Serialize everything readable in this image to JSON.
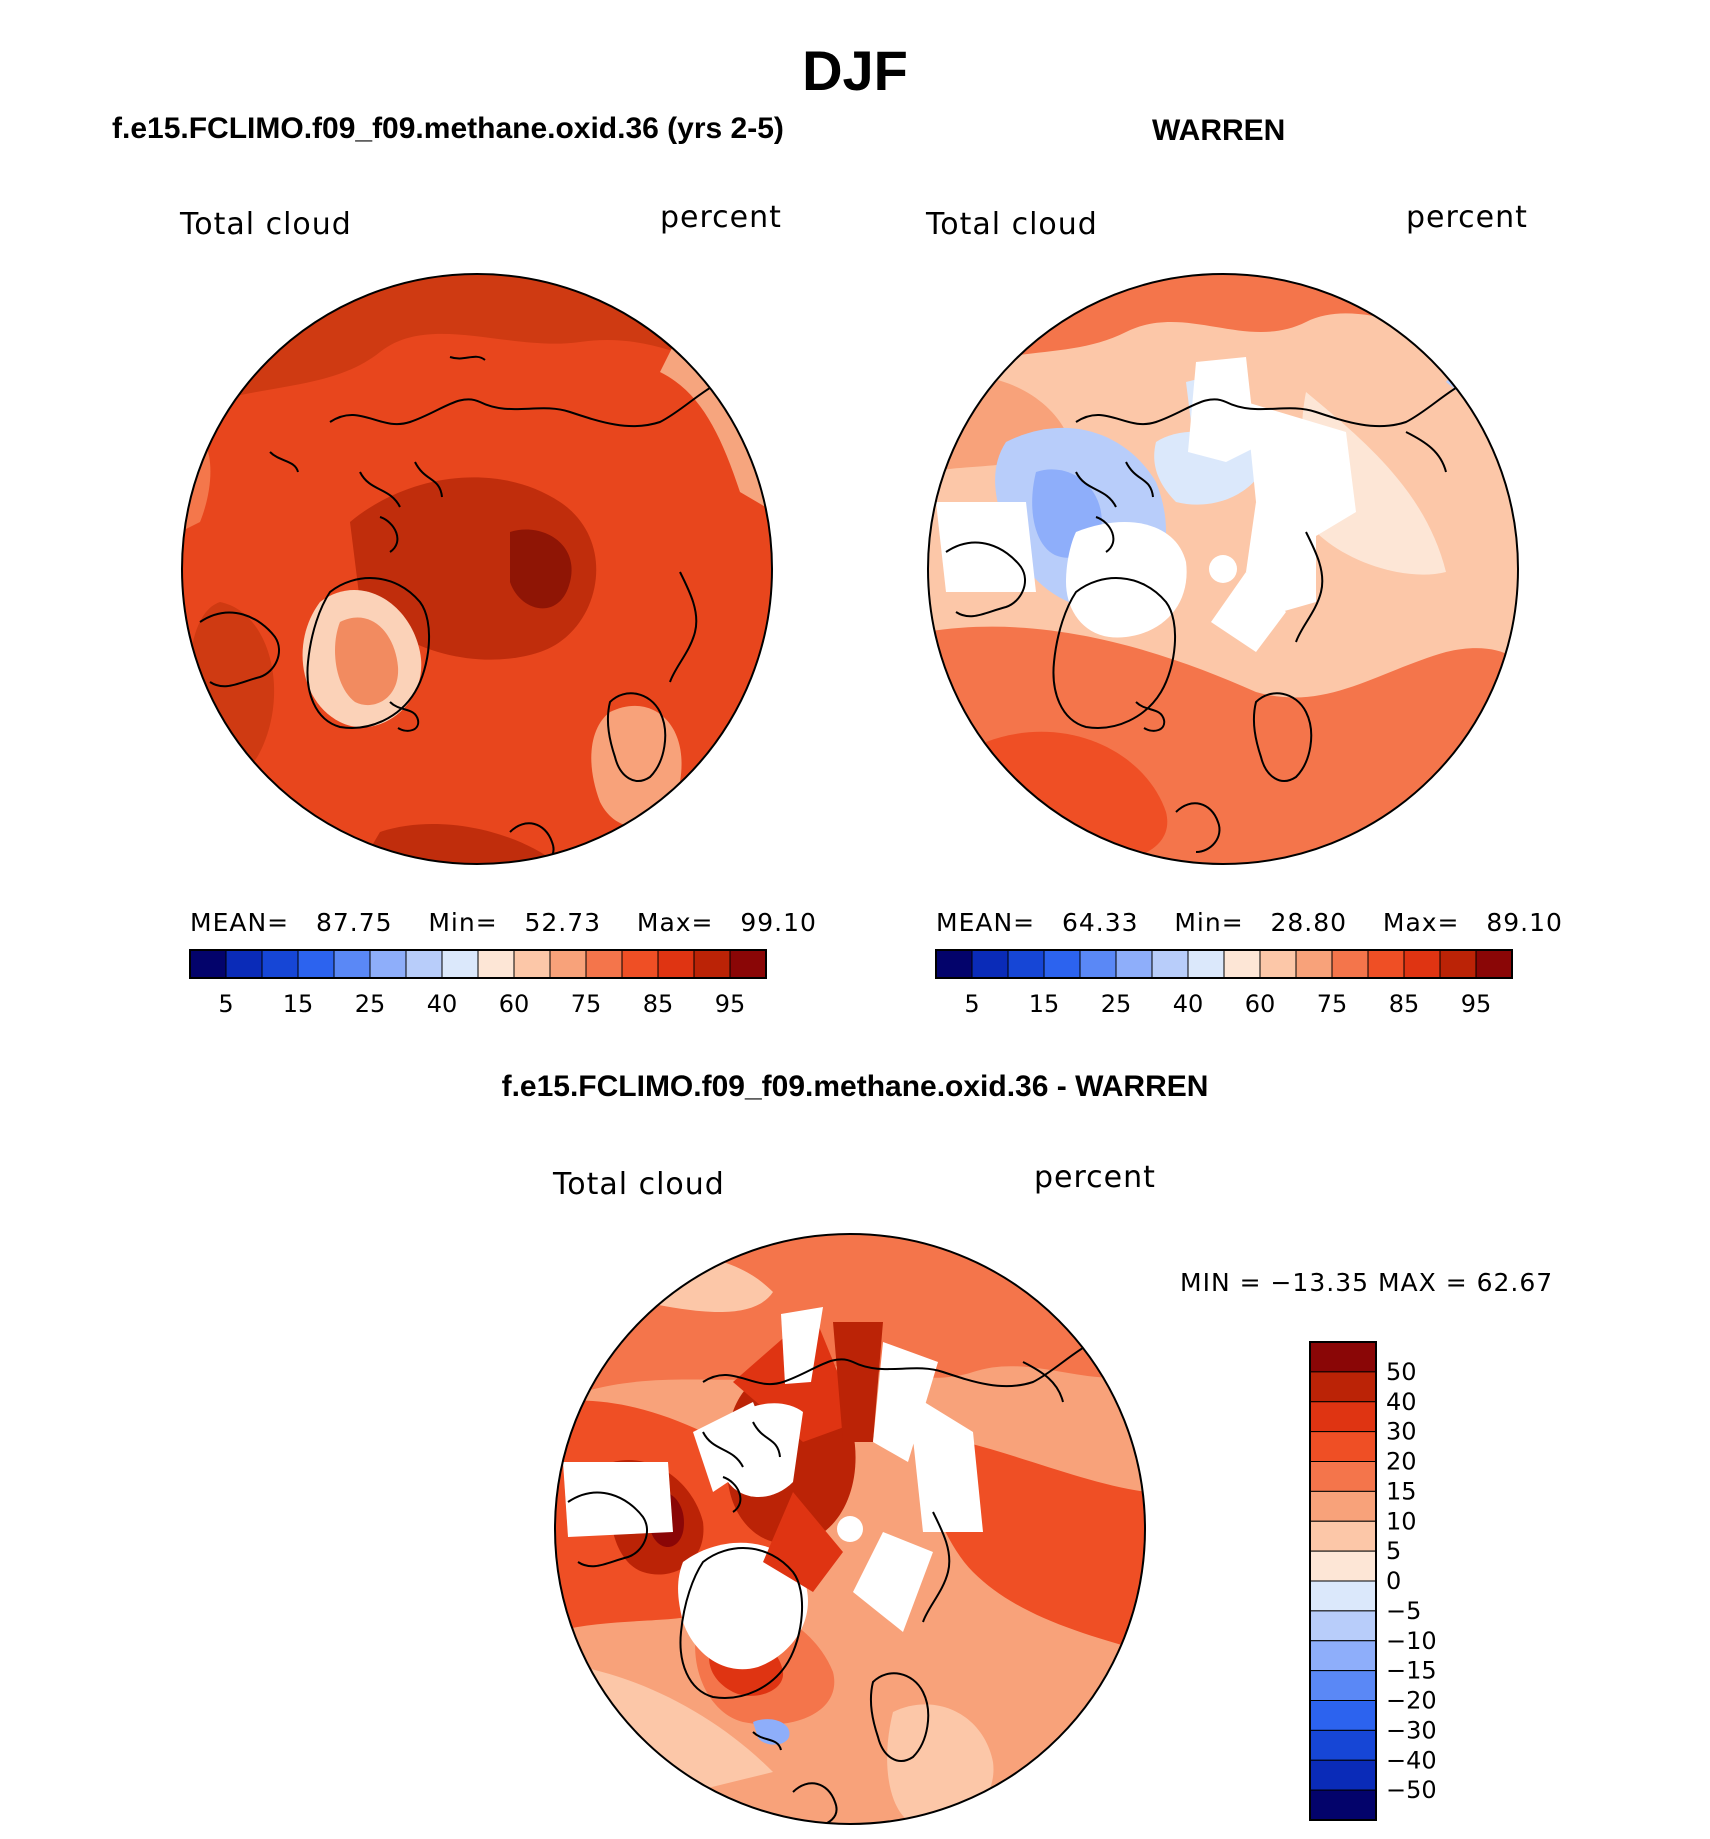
{
  "title": "DJF",
  "panels": {
    "model": {
      "case": "f.e15.FCLIMO.f09_f09.methane.oxid.36 (yrs 2-5)",
      "variable": "Total cloud",
      "units": "percent",
      "stats": {
        "mean_label": "MEAN=",
        "mean": "87.75",
        "min_label": "Min=",
        "min": "52.73",
        "max_label": "Max=",
        "max": "99.10"
      }
    },
    "obs": {
      "case": "WARREN",
      "variable": "Total cloud",
      "units": "percent",
      "stats": {
        "mean_label": "MEAN=",
        "mean": "64.33",
        "min_label": "Min=",
        "min": "28.80",
        "max_label": "Max=",
        "max": "89.10"
      }
    },
    "diff": {
      "case": "f.e15.FCLIMO.f09_f09.methane.oxid.36 - WARREN",
      "variable": "Total cloud",
      "units": "percent",
      "minmax_text": "MIN = −13.35 MAX =   62.67"
    }
  },
  "colorbar_abs": {
    "colors": [
      "#03036b",
      "#0a2bb8",
      "#1646d6",
      "#2c63ef",
      "#5a88f6",
      "#8eaefa",
      "#b8cdfa",
      "#dbe8fb",
      "#fde6d6",
      "#fcc7a8",
      "#f8a27a",
      "#f4754b",
      "#ef4f25",
      "#df3412",
      "#bb2306",
      "#8a0606"
    ],
    "tick_labels": [
      "5",
      "15",
      "25",
      "40",
      "60",
      "75",
      "85",
      "95"
    ]
  },
  "colorbar_diff": {
    "colors": [
      "#03036b",
      "#0a2bb8",
      "#1646d6",
      "#2c63ef",
      "#5a88f6",
      "#8eaefa",
      "#b8cdfa",
      "#dbe8fb",
      "#fde6d6",
      "#fcc7a8",
      "#f8a27a",
      "#f4754b",
      "#ef4f25",
      "#df3412",
      "#bb2306",
      "#8a0606"
    ],
    "tick_labels": [
      "50",
      "40",
      "30",
      "20",
      "15",
      "10",
      "5",
      "0",
      "−5",
      "−10",
      "−15",
      "−20",
      "−30",
      "−40",
      "−50"
    ]
  }
}
